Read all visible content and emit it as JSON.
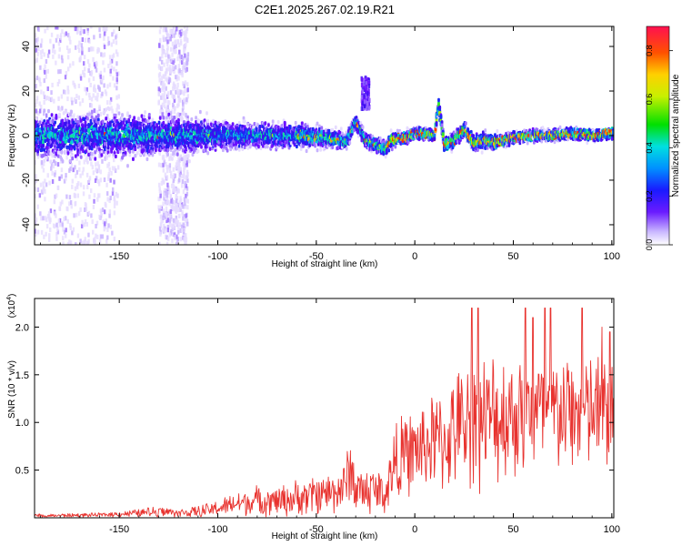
{
  "title": "C2E1.2025.267.02.19.R21",
  "colors": {
    "signal_line": "#e8322e"
  },
  "chart_data": [
    {
      "type": "heatmap",
      "title": "C2E1.2025.267.02.19.R21",
      "xlabel": "Height of straight line (km)",
      "ylabel": "Frequency (Hz)",
      "xlim": [
        -193,
        101
      ],
      "ylim": [
        -49,
        49
      ],
      "xticks": [
        -150,
        -100,
        -50,
        0,
        50,
        100
      ],
      "xtick_labels": [
        "-150",
        "-100",
        "-50",
        "0",
        "50",
        "100"
      ],
      "yticks": [
        -40,
        -20,
        0,
        20,
        40
      ],
      "ytick_labels": [
        "-40",
        "-20",
        "0",
        "20",
        "40"
      ],
      "colorbar": {
        "label": "Normalized spectral amplitude",
        "range": [
          0.0,
          0.9
        ],
        "ticks": [
          0.0,
          0.2,
          0.4,
          0.6,
          0.8
        ],
        "tick_labels": [
          "0.0",
          "0.2",
          "0.4",
          "0.6",
          "0.8"
        ]
      },
      "ridge": {
        "x": [
          -193,
          -150,
          -120,
          -100,
          -80,
          -60,
          -45,
          -35,
          -30,
          -25,
          -20,
          -15,
          -12,
          -5,
          0,
          5,
          10,
          12,
          15,
          20,
          25,
          30,
          35,
          40,
          50,
          60,
          70,
          80,
          90,
          100
        ],
        "freq": [
          0,
          0,
          0,
          0,
          0,
          0,
          -1,
          -3,
          6,
          -2,
          -4,
          -6,
          -2,
          -1,
          1,
          1,
          0,
          14,
          -4,
          -2,
          3,
          -4,
          -2,
          -3,
          -1,
          0,
          0,
          1,
          0,
          1
        ],
        "width": [
          9,
          9,
          8,
          6,
          5,
          5,
          4,
          3,
          3,
          3,
          3,
          3,
          3,
          2,
          2,
          2,
          2,
          3,
          3,
          3,
          3,
          3,
          3,
          3,
          2,
          2,
          2,
          2,
          2,
          2
        ]
      },
      "scatter_bands": [
        {
          "x_range": [
            -193,
            -150
          ],
          "freq_range": [
            -49,
            49
          ],
          "note": "faint broadband scatter"
        },
        {
          "x_range": [
            -130,
            -115
          ],
          "freq_range": [
            -49,
            49
          ],
          "note": "faint broadband scatter"
        },
        {
          "x_range": [
            -27,
            -23
          ],
          "freq_range": [
            12,
            26
          ],
          "note": "burst"
        }
      ]
    },
    {
      "type": "line",
      "xlabel": "Height of straight line (km)",
      "ylabel": "SNR (10 * v/v)",
      "y_multiplier": "(x10^4)",
      "y_multiplier_base": "(x10",
      "y_multiplier_exp": "4",
      "y_multiplier_close": ")",
      "xlim": [
        -193,
        101
      ],
      "ylim": [
        0,
        2.3
      ],
      "xticks": [
        -150,
        -100,
        -50,
        0,
        50,
        100
      ],
      "xtick_labels": [
        "-150",
        "-100",
        "-50",
        "0",
        "50",
        "100"
      ],
      "yticks": [
        0.5,
        1.0,
        1.5,
        2.0
      ],
      "ytick_labels": [
        "0.5",
        "1.0",
        "1.5",
        "2.0"
      ],
      "series": [
        {
          "name": "SNR",
          "color": "#e8322e",
          "envelope_x": [
            -193,
            -160,
            -140,
            -130,
            -120,
            -110,
            -100,
            -90,
            -80,
            -70,
            -60,
            -50,
            -40,
            -35,
            -33,
            -30,
            -25,
            -20,
            -15,
            -12,
            -10,
            -5,
            0,
            5,
            10,
            15,
            20,
            25,
            30,
            40,
            50,
            60,
            70,
            80,
            90,
            100
          ],
          "envelope_mean": [
            0.02,
            0.03,
            0.05,
            0.07,
            0.05,
            0.06,
            0.1,
            0.15,
            0.18,
            0.18,
            0.2,
            0.25,
            0.28,
            0.35,
            0.55,
            0.3,
            0.28,
            0.3,
            0.25,
            0.45,
            0.6,
            0.65,
            0.7,
            0.75,
            0.8,
            0.8,
            0.9,
            1.0,
            1.0,
            1.05,
            1.1,
            1.1,
            1.1,
            1.1,
            1.1,
            1.1
          ],
          "envelope_amp": [
            0.02,
            0.02,
            0.04,
            0.06,
            0.04,
            0.06,
            0.08,
            0.12,
            0.15,
            0.15,
            0.18,
            0.2,
            0.22,
            0.25,
            0.35,
            0.25,
            0.25,
            0.25,
            0.2,
            0.35,
            0.4,
            0.4,
            0.42,
            0.45,
            0.5,
            0.5,
            0.55,
            0.6,
            0.65,
            0.65,
            0.65,
            0.65,
            0.6,
            0.6,
            0.6,
            0.6
          ],
          "peak_x": [
            29,
            32,
            56,
            60,
            66,
            69,
            85,
            95,
            99
          ],
          "peak_y": [
            2.2,
            2.2,
            2.2,
            2.1,
            2.2,
            2.2,
            2.2,
            2.0,
            1.95
          ]
        }
      ]
    }
  ]
}
